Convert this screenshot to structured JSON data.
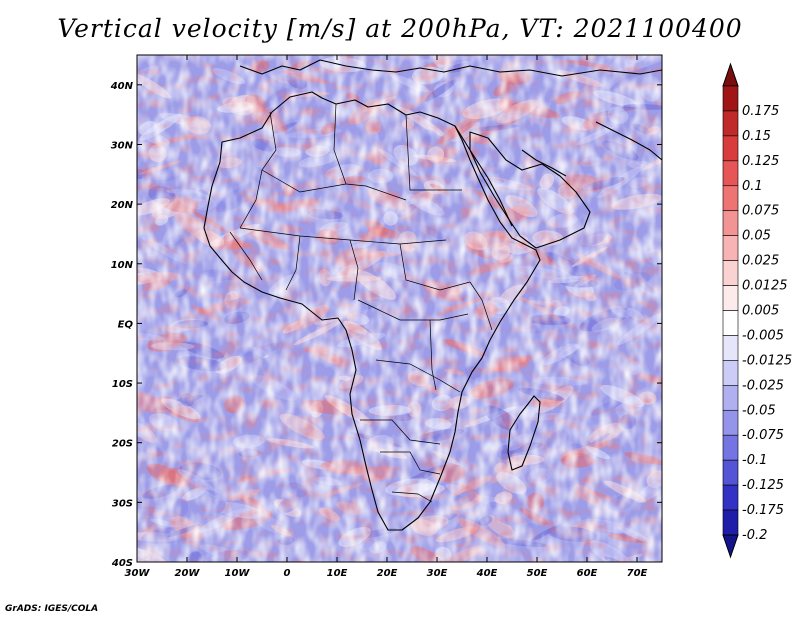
{
  "title": "Vertical velocity [m/s] at 200hPa, VT: 2021100400",
  "credit": "GrADS: IGES/COLA",
  "map": {
    "lon_range": [
      -30,
      75
    ],
    "lat_range": [
      -40,
      45
    ],
    "lon_ticks": [
      {
        "value": -30,
        "label": "30W"
      },
      {
        "value": -20,
        "label": "20W"
      },
      {
        "value": -10,
        "label": "10W"
      },
      {
        "value": 0,
        "label": "0"
      },
      {
        "value": 10,
        "label": "10E"
      },
      {
        "value": 20,
        "label": "20E"
      },
      {
        "value": 30,
        "label": "30E"
      },
      {
        "value": 40,
        "label": "40E"
      },
      {
        "value": 50,
        "label": "50E"
      },
      {
        "value": 60,
        "label": "60E"
      },
      {
        "value": 70,
        "label": "70E"
      }
    ],
    "lat_ticks": [
      {
        "value": 40,
        "label": "40N"
      },
      {
        "value": 30,
        "label": "30N"
      },
      {
        "value": 20,
        "label": "20N"
      },
      {
        "value": 10,
        "label": "10N"
      },
      {
        "value": 0,
        "label": "EQ"
      },
      {
        "value": -10,
        "label": "10S"
      },
      {
        "value": -20,
        "label": "20S"
      },
      {
        "value": -30,
        "label": "30S"
      },
      {
        "value": -40,
        "label": "40S"
      }
    ]
  },
  "colorbar": {
    "levels": [
      {
        "label": "0.175",
        "color": "#a01616"
      },
      {
        "label": "0.15",
        "color": "#c02a2a"
      },
      {
        "label": "0.125",
        "color": "#d83c3c"
      },
      {
        "label": "0.1",
        "color": "#e65656"
      },
      {
        "label": "0.075",
        "color": "#ee7474"
      },
      {
        "label": "0.05",
        "color": "#f39494"
      },
      {
        "label": "0.025",
        "color": "#f8b4b4"
      },
      {
        "label": "0.0125",
        "color": "#fbd2d2"
      },
      {
        "label": "0.005",
        "color": "#fdeaea"
      },
      {
        "label": "-0.005",
        "color": "#ffffff"
      },
      {
        "label": "-0.0125",
        "color": "#e6e6fb"
      },
      {
        "label": "-0.025",
        "color": "#ccccf6"
      },
      {
        "label": "-0.05",
        "color": "#b0b0f0"
      },
      {
        "label": "-0.075",
        "color": "#9494ea"
      },
      {
        "label": "-0.1",
        "color": "#7474e2"
      },
      {
        "label": "-0.125",
        "color": "#5454d6"
      },
      {
        "label": "-0.175",
        "color": "#3232c4"
      },
      {
        "label": "-0.2",
        "color": "#1e1ea8"
      }
    ],
    "top_color": "#7a0e0e",
    "bottom_color": "#14148c"
  }
}
